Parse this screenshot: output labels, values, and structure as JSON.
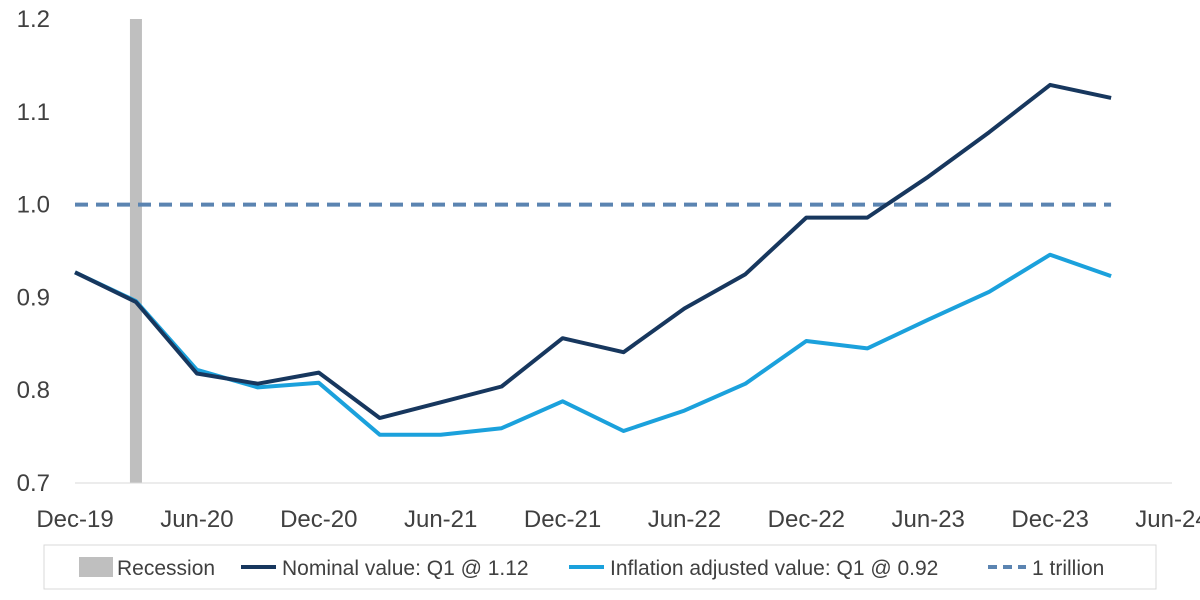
{
  "chart_data": {
    "type": "line",
    "title": "",
    "xlabel": "",
    "ylabel": "",
    "x_ticks": [
      "Dec-19",
      "Jun-20",
      "Dec-20",
      "Jun-21",
      "Dec-21",
      "Jun-22",
      "Dec-22",
      "Jun-23",
      "Dec-23",
      "Jun-24"
    ],
    "x_range_quarters": [
      0,
      18
    ],
    "y_ticks": [
      "0.7",
      "0.8",
      "0.9",
      "1.0",
      "1.1",
      "1.2"
    ],
    "ylim": [
      0.7,
      1.2
    ],
    "grid": false,
    "legend_position": "bottom",
    "recession": {
      "label": "Recession",
      "quarter": 1,
      "color": "#bfbfbf"
    },
    "series": [
      {
        "name": "Nominal value: Q1 @ 1.12",
        "color": "#17375e",
        "quarters": [
          0,
          1,
          2,
          3,
          4,
          5,
          6,
          7,
          8,
          9,
          10,
          11,
          12,
          13,
          14,
          15,
          16,
          17
        ],
        "values": [
          0.927,
          0.895,
          0.818,
          0.807,
          0.819,
          0.77,
          0.787,
          0.804,
          0.856,
          0.841,
          0.888,
          0.925,
          0.986,
          0.986,
          1.03,
          1.078,
          1.129,
          1.115
        ]
      },
      {
        "name": "Inflation adjusted value: Q1 @ 0.92",
        "color": "#1ba1dc",
        "quarters": [
          0,
          1,
          2,
          3,
          4,
          5,
          6,
          7,
          8,
          9,
          10,
          11,
          12,
          13,
          14,
          15,
          16,
          17
        ],
        "values": [
          0.927,
          0.896,
          0.822,
          0.803,
          0.808,
          0.752,
          0.752,
          0.759,
          0.788,
          0.756,
          0.778,
          0.807,
          0.853,
          0.845,
          0.876,
          0.906,
          0.946,
          0.923
        ]
      }
    ],
    "reference_line": {
      "name": "1 trillion",
      "value": 1.0,
      "color": "#5b84b1"
    }
  }
}
